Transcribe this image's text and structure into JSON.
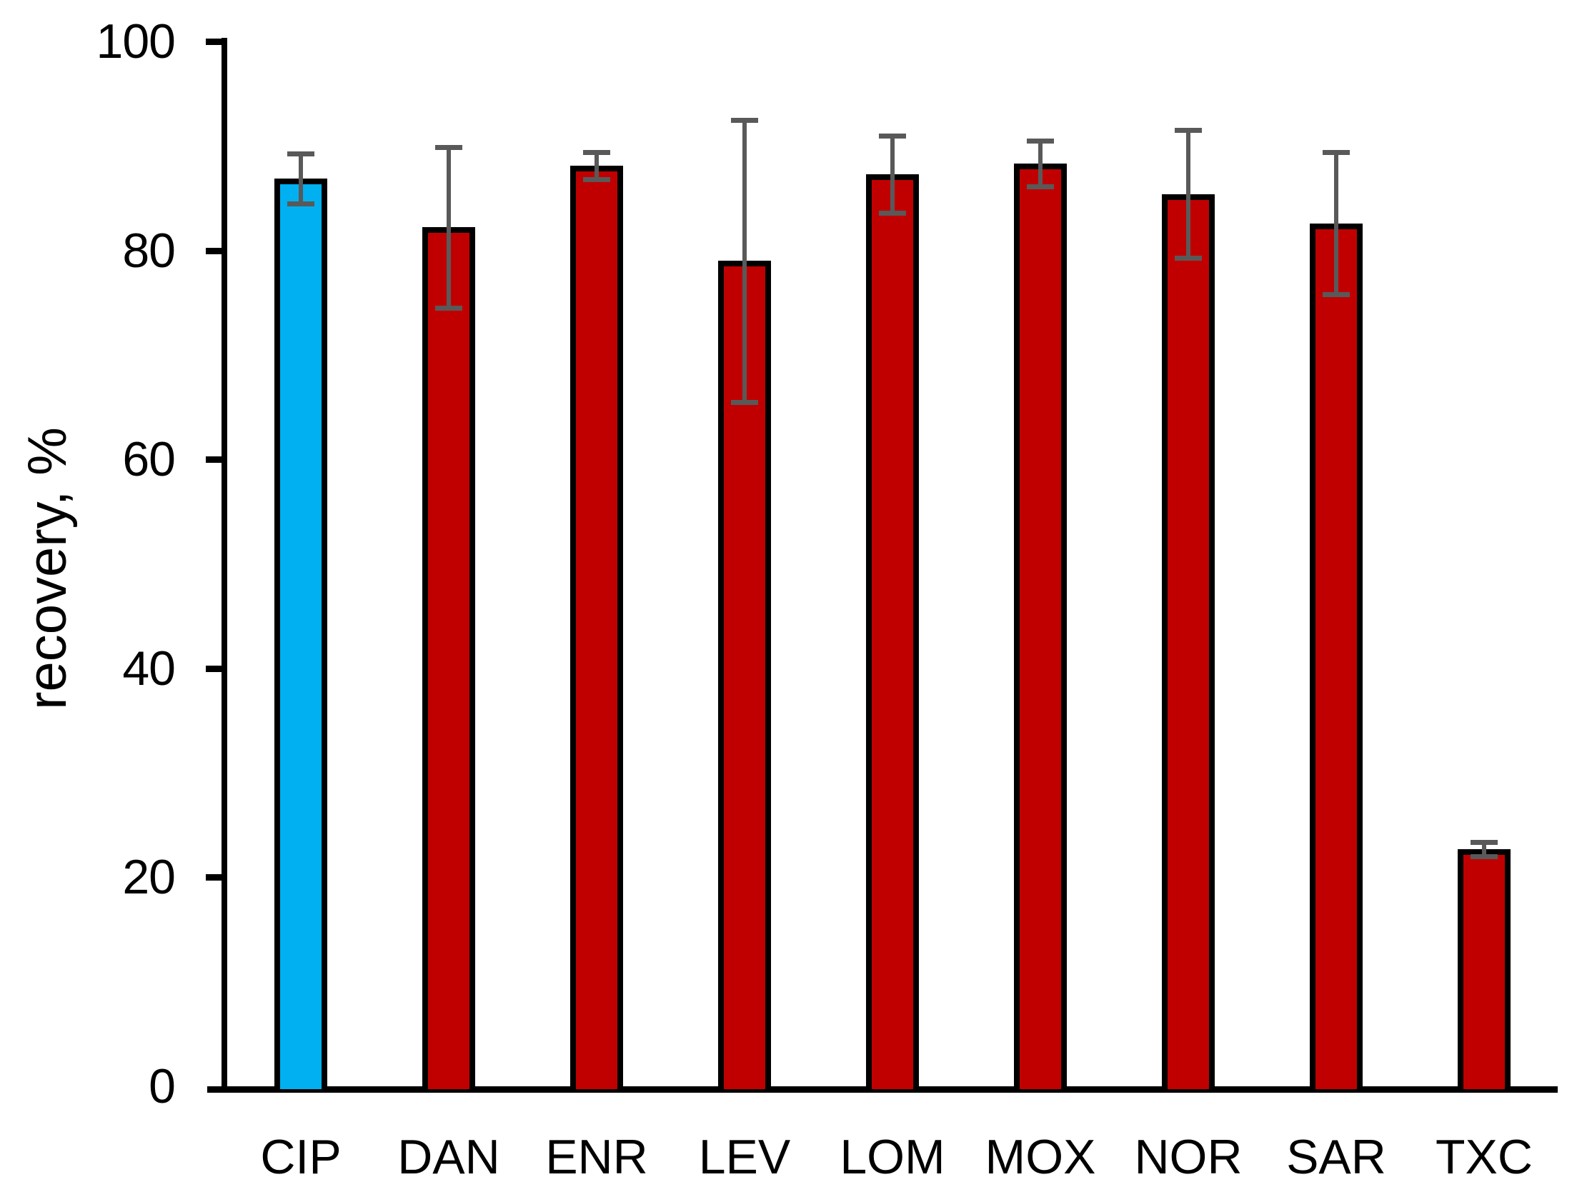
{
  "chart_data": {
    "type": "bar",
    "title": "",
    "xlabel": "",
    "ylabel": "recovery, %",
    "ylim": [
      0,
      100
    ],
    "yticks": [
      0,
      20,
      40,
      60,
      80,
      100
    ],
    "ytick_labels": [
      "0",
      "20",
      "40",
      "60",
      "80",
      "100"
    ],
    "grid": false,
    "legend": false,
    "categories": [
      "CIP",
      "DAN",
      "ENR",
      "LEV",
      "LOM",
      "MOX",
      "NOR",
      "SAR",
      "TXC"
    ],
    "series": [
      {
        "name": "recovery",
        "values": [
          86.9,
          82.2,
          88.1,
          79.0,
          87.3,
          88.3,
          85.4,
          82.6,
          22.7
        ],
        "errors": [
          2.4,
          7.7,
          1.3,
          13.5,
          3.7,
          2.2,
          6.1,
          6.8,
          0.7
        ]
      }
    ],
    "bar_colors": [
      "#00b0f0",
      "#c00000",
      "#c00000",
      "#c00000",
      "#c00000",
      "#c00000",
      "#c00000",
      "#c00000",
      "#c00000"
    ],
    "highlight_color": "#00b0f0",
    "default_bar_color": "#c00000",
    "bar_outline_color": "#000000",
    "error_bar_color": "#595959",
    "axis_color": "#000000"
  }
}
